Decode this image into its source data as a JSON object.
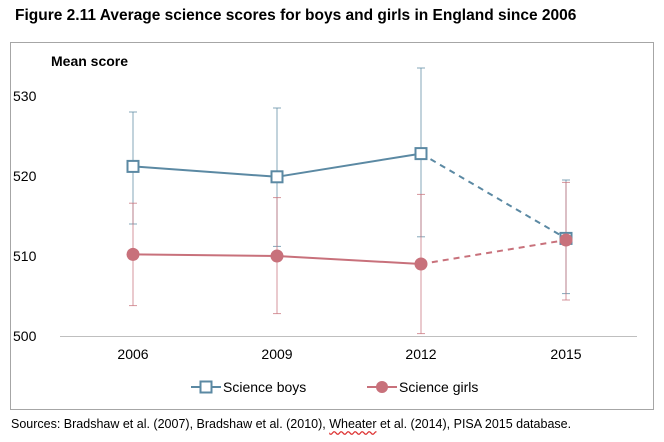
{
  "title": "Figure 2.11 Average science scores for boys and girls in England since 2006",
  "source": {
    "before": "Sources: Bradshaw et al. (2007), Bradshaw et al. (2010), ",
    "squiggle": "Wheater",
    "after": " et al. (2014), PISA 2015 database."
  },
  "colors": {
    "boys": "#5b89a3",
    "girls": "#c8717b",
    "frame": "#a6a6a6",
    "axis": "#bfbfbf"
  },
  "chart_data": {
    "type": "line",
    "title": "Figure 2.11 Average science scores for boys and girls in England since 2006",
    "ylabel": "Mean score",
    "ylim": [
      500,
      530
    ],
    "yticks": [
      "500",
      "510",
      "520",
      "530"
    ],
    "categories": [
      "2006",
      "2009",
      "2012",
      "2015"
    ],
    "grid": false,
    "legend_position": "bottom",
    "series": [
      {
        "name": "Science boys",
        "marker": "square-open",
        "color": "#5b89a3",
        "values": [
          521.2,
          519.9,
          522.8,
          512.2
        ],
        "error_low": [
          514.0,
          511.2,
          512.4,
          505.3
        ],
        "error_high": [
          528.0,
          528.5,
          533.5,
          519.5
        ],
        "dashed_segments": [
          2
        ]
      },
      {
        "name": "Science girls",
        "marker": "circle-filled",
        "color": "#c8717b",
        "values": [
          510.2,
          510.0,
          509.0,
          512.0
        ],
        "error_low": [
          503.8,
          502.8,
          500.3,
          504.5
        ],
        "error_high": [
          516.6,
          517.3,
          517.7,
          519.2
        ],
        "dashed_segments": [
          2
        ]
      }
    ]
  }
}
